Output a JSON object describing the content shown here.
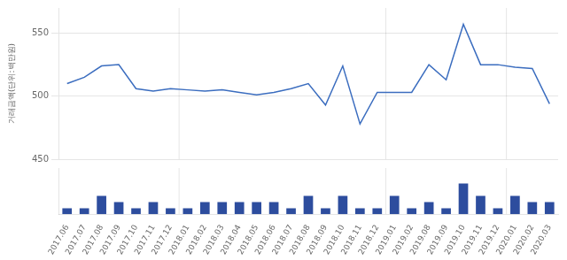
{
  "chart_data": [
    {
      "type": "line",
      "categories": [
        "2017.06",
        "2017.07",
        "2017.08",
        "2017.09",
        "2017.10",
        "2017.11",
        "2017.12",
        "2018.01",
        "2018.02",
        "2018.03",
        "2018.04",
        "2018.05",
        "2018.06",
        "2018.07",
        "2018.08",
        "2018.09",
        "2018.10",
        "2018.11",
        "2018.12",
        "2019.01",
        "2019.02",
        "2019.08",
        "2019.09",
        "2019.10",
        "2019.11",
        "2019.12",
        "2020.01",
        "2020.02",
        "2020.03"
      ],
      "values": [
        510,
        515,
        524,
        525,
        506,
        504,
        506,
        505,
        504,
        505,
        503,
        501,
        503,
        506,
        510,
        493,
        524,
        478,
        503,
        503,
        503,
        525,
        513,
        557,
        525,
        525,
        523,
        522,
        494
      ],
      "color": "#3b6dbf",
      "ylabel": "거래금액(단위:백만원)",
      "ylim": [
        450,
        570
      ],
      "yticks": [
        450,
        500,
        550
      ],
      "grid": true,
      "tick_labels": "y"
    },
    {
      "type": "bar",
      "categories": [
        "2017.06",
        "2017.07",
        "2017.08",
        "2017.09",
        "2017.10",
        "2017.11",
        "2017.12",
        "2018.01",
        "2018.02",
        "2018.03",
        "2018.04",
        "2018.05",
        "2018.06",
        "2018.07",
        "2018.08",
        "2018.09",
        "2018.10",
        "2018.11",
        "2018.12",
        "2019.01",
        "2019.02",
        "2019.08",
        "2019.09",
        "2019.10",
        "2019.11",
        "2019.12",
        "2020.01",
        "2020.02",
        "2020.03"
      ],
      "values": [
        1,
        1,
        3,
        2,
        1,
        2,
        1,
        1,
        2,
        2,
        2,
        2,
        2,
        1,
        3,
        1,
        3,
        1,
        1,
        3,
        1,
        2,
        1,
        5,
        3,
        1,
        3,
        2,
        2
      ],
      "color": "#2d4d9e",
      "ylim": [
        0,
        7.5
      ],
      "grid": false,
      "tick_labels": "x"
    }
  ]
}
